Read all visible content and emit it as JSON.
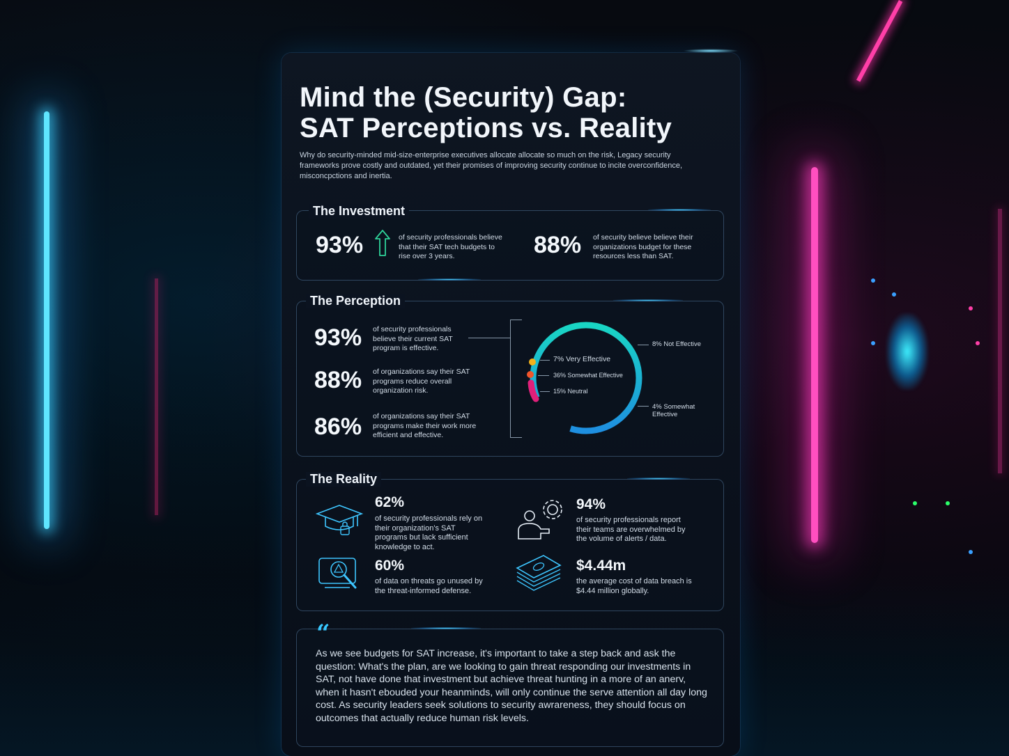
{
  "title_line1": "Mind the (Security) Gap:",
  "title_line2": "SAT Perceptions vs. Reality",
  "intro": "Why do security-minded mid-size-enterprise executives allocate allocate so much on the risk, Legacy security frameworks prove costly and outdated, yet their promises of improving security continue to incite overconfidence, misconcpctions and inertia.",
  "investment": {
    "heading": "The Investment",
    "stat1_value": "93%",
    "stat1_text": "of security professionals believe that their SAT tech budgets to rise over 3 years.",
    "stat1_icon": "arrow-up-icon",
    "stat2_value": "88%",
    "stat2_text": "of security believe believe their organizations budget for these resources less than SAT."
  },
  "perception": {
    "heading": "The Perception",
    "stats": [
      {
        "value": "93%",
        "text": "of security professionals believe their current SAT program is effective."
      },
      {
        "value": "88%",
        "text": "of organizations say their SAT programs reduce overall organization risk."
      },
      {
        "value": "86%",
        "text": "of organizations say their SAT programs make their work more efficient and effective."
      }
    ],
    "donut_labels": {
      "not_effective": "8% Not Effective",
      "very_effective": "7% Very Effective",
      "somewhat_effective_36": "36% Somewhat Effective",
      "neutral": "15% Neutral",
      "somewhat_effective_4": "4% Somewhat Effective"
    },
    "colors": {
      "teal": "#19d6c4",
      "blue": "#1ea6e6",
      "yellow": "#f2b21b",
      "orange": "#f0552b",
      "magenta": "#e0207a"
    }
  },
  "reality": {
    "heading": "The Reality",
    "items": [
      {
        "value": "62%",
        "text": "of security professionals rely on their organization's SAT programs but lack sufficient knowledge to act.",
        "icon": "graduation-cap-icon"
      },
      {
        "value": "94%",
        "text": "of security professionals report their teams are overwhelmed by the volume of alerts / data.",
        "icon": "person-gear-icon"
      },
      {
        "value": "60%",
        "text": "of data on threats go unused by the threat-informed defense.",
        "icon": "threat-search-icon"
      },
      {
        "value": "$4.44m",
        "text": "the average cost of data breach is $4.44 million globally.",
        "icon": "money-stack-icon"
      }
    ]
  },
  "quote": {
    "mark": "“",
    "text": "As we see budgets for SAT increase, it's important to take a step back and ask the question: What's the plan, are we looking to gain threat responding our investments in SAT, not have done that investment but achieve threat hunting in a more of an anerv, when it hasn't ebouded your heanminds, will only continue the serve attention all day long cost. As security leaders seek solutions to security awrareness, they should focus on outcomes that actually reduce human risk levels."
  }
}
